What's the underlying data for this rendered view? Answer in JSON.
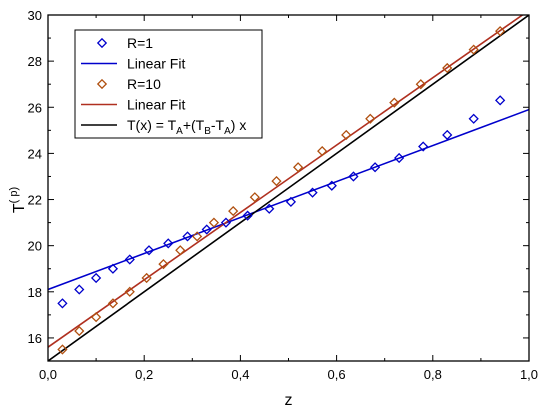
{
  "chart_data": {
    "type": "scatter",
    "xlabel": "z",
    "ylabel": "T(p)",
    "ylabel_main": "T",
    "ylabel_sup": "( p)",
    "xlim": [
      0.0,
      1.0
    ],
    "ylim": [
      15.0,
      30.0
    ],
    "x_ticks": [
      0.0,
      0.2,
      0.4,
      0.6,
      0.8,
      1.0
    ],
    "x_tick_labels": [
      "0,0",
      "0,2",
      "0,4",
      "0,6",
      "0,8",
      "1,0"
    ],
    "y_ticks": [
      16,
      18,
      20,
      22,
      24,
      26,
      28,
      30
    ],
    "y_tick_labels": [
      "16",
      "18",
      "20",
      "22",
      "24",
      "26",
      "28",
      "30"
    ],
    "grid": false,
    "legend_position": "top-left",
    "series": [
      {
        "name": "R=1",
        "kind": "markers",
        "marker": "diamond",
        "color": "#0000cc",
        "x": [
          0.03,
          0.065,
          0.1,
          0.135,
          0.17,
          0.21,
          0.25,
          0.29,
          0.33,
          0.37,
          0.415,
          0.46,
          0.505,
          0.55,
          0.59,
          0.635,
          0.68,
          0.73,
          0.78,
          0.83,
          0.885,
          0.94
        ],
        "y": [
          17.5,
          18.1,
          18.6,
          19.0,
          19.4,
          19.8,
          20.1,
          20.4,
          20.7,
          21.0,
          21.3,
          21.6,
          21.9,
          22.3,
          22.6,
          23.0,
          23.4,
          23.8,
          24.3,
          24.8,
          25.5,
          26.3
        ]
      },
      {
        "name": "Linear Fit",
        "kind": "line",
        "color": "#0000cc",
        "x": [
          0.0,
          1.0
        ],
        "y": [
          18.1,
          25.9
        ]
      },
      {
        "name": "R=10",
        "kind": "markers",
        "marker": "diamond",
        "color": "#b05010",
        "x": [
          0.03,
          0.065,
          0.1,
          0.135,
          0.17,
          0.205,
          0.24,
          0.275,
          0.31,
          0.345,
          0.385,
          0.43,
          0.475,
          0.52,
          0.57,
          0.62,
          0.67,
          0.72,
          0.775,
          0.83,
          0.885,
          0.94
        ],
        "y": [
          15.5,
          16.3,
          16.9,
          17.5,
          18.0,
          18.6,
          19.2,
          19.8,
          20.4,
          21.0,
          21.5,
          22.1,
          22.8,
          23.4,
          24.1,
          24.8,
          25.5,
          26.2,
          27.0,
          27.7,
          28.5,
          29.3
        ]
      },
      {
        "name": "Linear Fit",
        "kind": "line",
        "color": "#b03020",
        "x": [
          0.0,
          1.0
        ],
        "y": [
          15.6,
          30.2
        ]
      },
      {
        "name": "T(x) = TA+(TB-TA) x",
        "kind": "line",
        "color": "#000000",
        "x": [
          0.0,
          1.0
        ],
        "y": [
          15.0,
          30.0
        ]
      }
    ],
    "legend": [
      {
        "label": "R=1",
        "kind": "marker",
        "color": "#0000cc"
      },
      {
        "label": "Linear Fit",
        "kind": "line",
        "color": "#0000cc"
      },
      {
        "label": "R=10",
        "kind": "marker",
        "color": "#b05010"
      },
      {
        "label": "Linear Fit",
        "kind": "line",
        "color": "#b03020"
      },
      {
        "label_parts": [
          "T(x) = T",
          "A",
          "+(T",
          "B",
          "-T",
          "A",
          ") x"
        ],
        "kind": "line",
        "color": "#000000"
      }
    ]
  }
}
